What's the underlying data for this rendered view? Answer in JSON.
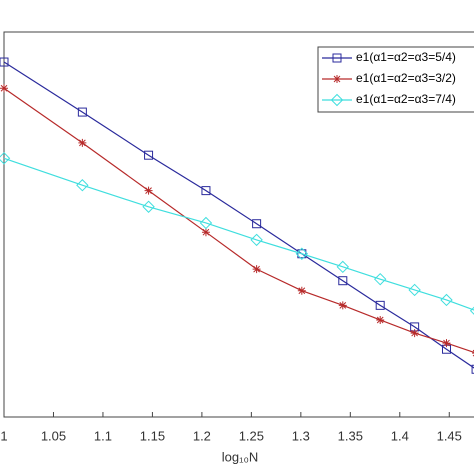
{
  "chart_data": {
    "type": "line",
    "xlabel": "log₁₀N",
    "x": [
      1,
      1.0792,
      1.1461,
      1.2041,
      1.2553,
      1.301,
      1.3424,
      1.3802,
      1.415,
      1.4472,
      1.4771
    ],
    "series": [
      {
        "name": "e1(α1=α2=α3=5/4)",
        "color": "#2a2a9c",
        "marker": "square",
        "values": [
          4.61,
          3.96,
          3.4,
          2.94,
          2.51,
          2.12,
          1.77,
          1.45,
          1.17,
          0.88,
          0.62
        ]
      },
      {
        "name": "e1(α1=α2=α3=3/2)",
        "color": "#b72a2a",
        "marker": "asterisk",
        "values": [
          4.27,
          3.56,
          2.94,
          2.4,
          1.92,
          1.64,
          1.45,
          1.26,
          1.09,
          0.96,
          0.83
        ]
      },
      {
        "name": "e1(α1=α2=α3=7/4)",
        "color": "#3fdede",
        "marker": "diamond",
        "values": [
          3.36,
          3.01,
          2.73,
          2.52,
          2.3,
          2.12,
          1.95,
          1.79,
          1.65,
          1.52,
          1.38
        ]
      }
    ],
    "xlim": [
      1,
      1.475
    ],
    "ylim": [
      0,
      5
    ],
    "xticks": [
      1,
      1.05,
      1.1,
      1.15,
      1.2,
      1.25,
      1.3,
      1.35,
      1.4,
      1.45
    ],
    "legend": "top-right"
  }
}
